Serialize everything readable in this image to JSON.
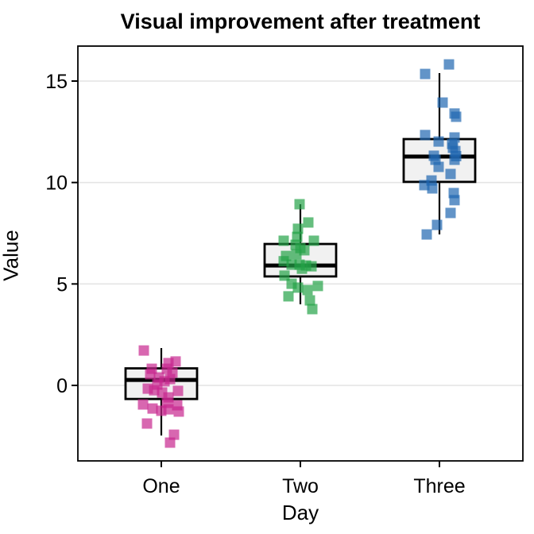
{
  "chart_data": {
    "type": "boxplot",
    "variant": "boxplot-with-jittered-square-points",
    "title": "Visual improvement after treatment",
    "xlabel": "Day",
    "ylabel": "Value",
    "categories": [
      "One",
      "Two",
      "Three"
    ],
    "y_ticks": [
      0,
      5,
      10,
      15
    ],
    "ylim": [
      -3.7,
      16.7
    ],
    "grid": "horizontal-major-only",
    "legend_position": "none",
    "panel_background": "#FFFFFF",
    "panel_border_color": "#000000",
    "gridline_color": "#E4E4E4",
    "box_fill_color": "#F1F1F1",
    "box_line_color": "#000000",
    "point_shape": "filled-square",
    "point_opacity": 0.7,
    "groups": [
      {
        "name": "One",
        "color": "#C8268E",
        "box": {
          "q1": -0.67,
          "median": 0.27,
          "q3": 0.84,
          "whisker_low": -2.47,
          "whisker_high": 1.84
        },
        "points": [
          [
            -22,
            1.72
          ],
          [
            9,
            1.1
          ],
          [
            18,
            1.18
          ],
          [
            -12,
            0.82
          ],
          [
            -14,
            0.55
          ],
          [
            7,
            0.82
          ],
          [
            14,
            0.63
          ],
          [
            -3,
            0.39
          ],
          [
            4,
            0.2
          ],
          [
            -5,
            0.04
          ],
          [
            11,
            0.31
          ],
          [
            21,
            -0.27
          ],
          [
            -17,
            -0.16
          ],
          [
            -9,
            -0.24
          ],
          [
            1,
            -0.35
          ],
          [
            9,
            -0.59
          ],
          [
            -23,
            -0.94
          ],
          [
            -11,
            -1.14
          ],
          [
            7,
            -0.86
          ],
          [
            20,
            -0.98
          ],
          [
            0,
            -1.25
          ],
          [
            22,
            -1.29
          ],
          [
            -18,
            -1.88
          ],
          [
            16,
            -2.43
          ],
          [
            11,
            -2.82
          ],
          [
            9,
            -1.18
          ]
        ]
      },
      {
        "name": "Two",
        "color": "#24A247",
        "box": {
          "q1": 5.37,
          "median": 5.91,
          "q3": 6.97,
          "whisker_low": 4.0,
          "whisker_high": 8.93
        },
        "points": [
          [
            -1,
            8.93
          ],
          [
            10,
            8.03
          ],
          [
            -3,
            7.72
          ],
          [
            -4,
            7.32
          ],
          [
            -21,
            7.13
          ],
          [
            17,
            7.13
          ],
          [
            -6,
            6.93
          ],
          [
            0,
            6.77
          ],
          [
            5,
            6.66
          ],
          [
            -5,
            6.46
          ],
          [
            -18,
            6.38
          ],
          [
            -21,
            6.12
          ],
          [
            -11,
            5.95
          ],
          [
            -1,
            5.95
          ],
          [
            7,
            5.91
          ],
          [
            14,
            5.87
          ],
          [
            2,
            5.75
          ],
          [
            -20,
            5.41
          ],
          [
            -11,
            5.01
          ],
          [
            -3,
            4.82
          ],
          [
            9,
            4.7
          ],
          [
            22,
            4.9
          ],
          [
            -15,
            4.39
          ],
          [
            12,
            4.19
          ],
          [
            15,
            3.76
          ]
        ]
      },
      {
        "name": "Three",
        "color": "#1F66B0",
        "box": {
          "q1": 10.03,
          "median": 11.28,
          "q3": 12.14,
          "whisker_low": 7.44,
          "whisker_high": 15.39
        },
        "points": [
          [
            12,
            15.82
          ],
          [
            -18,
            15.35
          ],
          [
            4,
            13.94
          ],
          [
            19,
            13.4
          ],
          [
            21,
            13.24
          ],
          [
            -18,
            12.34
          ],
          [
            19,
            12.22
          ],
          [
            -1,
            12.02
          ],
          [
            17,
            11.71
          ],
          [
            20,
            11.55
          ],
          [
            -7,
            11.32
          ],
          [
            -5,
            11.12
          ],
          [
            19,
            11.12
          ],
          [
            -1,
            10.77
          ],
          [
            14,
            10.42
          ],
          [
            -10,
            10.1
          ],
          [
            -19,
            9.87
          ],
          [
            -9,
            9.71
          ],
          [
            18,
            9.48
          ],
          [
            19,
            9.13
          ],
          [
            14,
            8.5
          ],
          [
            -3,
            7.91
          ],
          [
            -16,
            7.44
          ],
          [
            16,
            11.9
          ],
          [
            21,
            11.3
          ]
        ]
      }
    ]
  }
}
